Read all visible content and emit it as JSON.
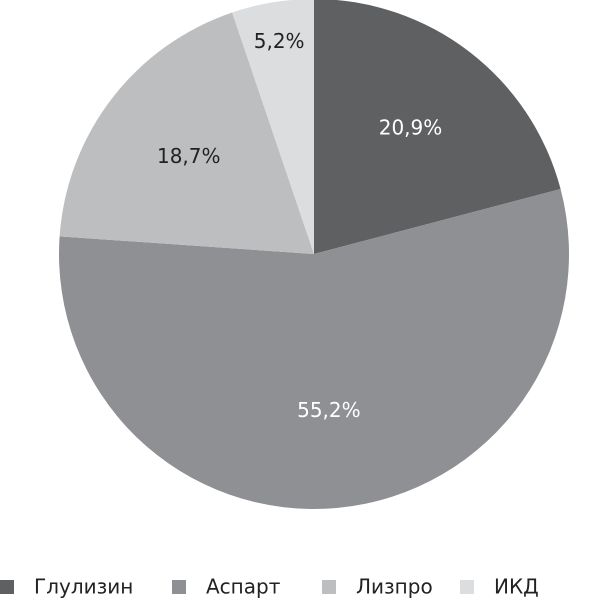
{
  "chart_data": {
    "type": "pie",
    "categories": [
      "Глулизин",
      "Аспарт",
      "Лизпро",
      "ИКД"
    ],
    "values": [
      20.9,
      55.2,
      18.7,
      5.2
    ],
    "value_labels": [
      "20,9%",
      "55,2%",
      "18,7%",
      "5,2%"
    ],
    "colors": [
      "#5f6062",
      "#8f9093",
      "#bdbec0",
      "#dcdddf"
    ],
    "legend": "bottom"
  }
}
